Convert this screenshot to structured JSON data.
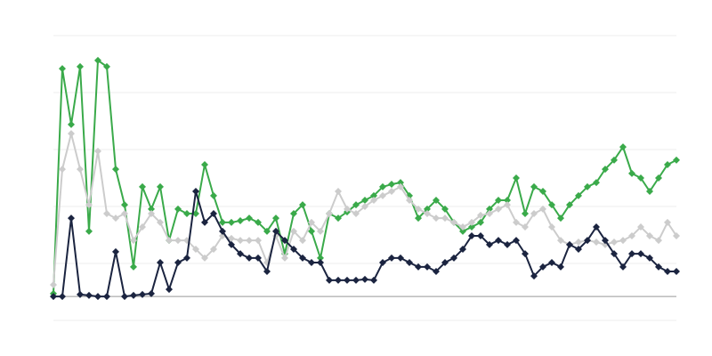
{
  "chart_data": {
    "type": "line",
    "categories": [
      null,
      null,
      null,
      null,
      null,
      null,
      null,
      null,
      null,
      null,
      null,
      null,
      null,
      null,
      null,
      null,
      null,
      null,
      null,
      null,
      null,
      null,
      null,
      null,
      null,
      null,
      null,
      null,
      null,
      null,
      null,
      null,
      null,
      null,
      null,
      null,
      null,
      null,
      null,
      null,
      null,
      null,
      null,
      null,
      null,
      null,
      null,
      null,
      null,
      null,
      null,
      null,
      null,
      null,
      null,
      null,
      null,
      null,
      null,
      null,
      null,
      null,
      null,
      null,
      null,
      null,
      null,
      null,
      null,
      null,
      null
    ],
    "ylim": [
      0,
      100
    ],
    "yticks": [
      0,
      20,
      40,
      60,
      80,
      100
    ],
    "grid": true,
    "baseline": 8.4,
    "baseline_color": "#999999",
    "series": [
      {
        "color": "#3aaa4a",
        "values": [
          9.4,
          88.4,
          68.8,
          89.1,
          31.3,
          91.3,
          89.1,
          53.1,
          40.6,
          18.8,
          46.9,
          39.1,
          46.9,
          28.1,
          39.1,
          37.5,
          37.5,
          54.7,
          43.8,
          34.4,
          34.4,
          35,
          35.9,
          34.4,
          31.3,
          35.9,
          23.4,
          37.5,
          40.6,
          31.3,
          21.9,
          37.5,
          35.9,
          38.1,
          40.6,
          42.2,
          43.8,
          46.9,
          47.8,
          48.4,
          43.8,
          35.9,
          39.1,
          42.2,
          39.1,
          34.4,
          31.3,
          32.8,
          34.4,
          39.1,
          42.2,
          42.2,
          50,
          37.5,
          46.9,
          45.3,
          40.6,
          35.9,
          40.6,
          43.8,
          46.9,
          48.4,
          53.1,
          56.3,
          60.9,
          51.6,
          50,
          45.3,
          50,
          54.7,
          56.3
        ]
      },
      {
        "color": "#cccccc",
        "values": [
          12.5,
          53.1,
          65.6,
          53.1,
          40.6,
          59.4,
          37.5,
          35.9,
          37.5,
          28.1,
          32.8,
          37.5,
          34.4,
          28.1,
          28.1,
          28.1,
          25,
          21.9,
          25,
          29.7,
          28.8,
          28.1,
          28.1,
          28.1,
          20.3,
          29.7,
          21.9,
          31.3,
          28.1,
          34.4,
          31.3,
          37.5,
          45.3,
          39.1,
          37.5,
          40,
          42.2,
          43.8,
          45.3,
          46.9,
          42.2,
          39.1,
          37.5,
          35.9,
          35.9,
          34.4,
          32.8,
          34.4,
          36.9,
          37.5,
          39.1,
          40.6,
          34.4,
          32.8,
          37.5,
          39.1,
          32.8,
          28.1,
          26.6,
          27.5,
          28.1,
          27.5,
          26.6,
          27.5,
          28.1,
          29.7,
          32.8,
          29.7,
          28.1,
          34.4,
          29.7
        ]
      },
      {
        "color": "#1b2440",
        "values": [
          8.4,
          8.4,
          35.9,
          9.1,
          8.8,
          8.4,
          8.4,
          24.1,
          8.4,
          8.8,
          9.1,
          9.4,
          20.3,
          10.9,
          20.3,
          21.9,
          45.3,
          34.4,
          37.5,
          31.3,
          26.6,
          23.4,
          21.9,
          21.9,
          17.2,
          31.3,
          28.1,
          25,
          21.9,
          20.3,
          20.3,
          14.1,
          14.1,
          14.1,
          14.1,
          14.4,
          14.1,
          20.3,
          21.9,
          21.9,
          20.3,
          18.8,
          18.8,
          17.2,
          20.3,
          21.9,
          25,
          29.7,
          29.7,
          26.6,
          28.1,
          26.6,
          28.1,
          23.4,
          15.6,
          18.8,
          20.3,
          18.8,
          26.6,
          25,
          28.1,
          32.8,
          28.1,
          23.4,
          18.8,
          23.4,
          23.4,
          21.9,
          18.8,
          17.2,
          17.2
        ]
      }
    ]
  }
}
